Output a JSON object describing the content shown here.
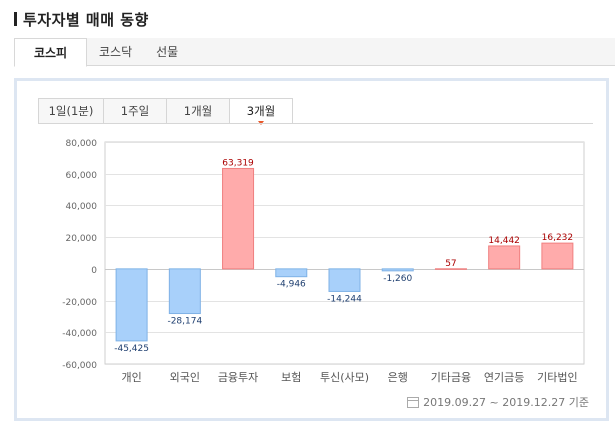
{
  "header": {
    "title": "투자자별 매매 동향"
  },
  "market_tabs": [
    {
      "label": "코스피",
      "active": true
    },
    {
      "label": "코스닥",
      "active": false
    },
    {
      "label": "선물",
      "active": false
    }
  ],
  "period_tabs": [
    {
      "label": "1일(1분)",
      "active": false
    },
    {
      "label": "1주일",
      "active": false
    },
    {
      "label": "1개월",
      "active": false
    },
    {
      "label": "3개월",
      "active": true
    }
  ],
  "footer": {
    "date_range": "2019.09.27 ~ 2019.12.27 기준"
  },
  "colors": {
    "positive_fill": "#ffabab",
    "positive_stroke": "#f08080",
    "positive_label": "#aa0000",
    "negative_fill": "#a8d0fa",
    "negative_stroke": "#7fb2e6",
    "negative_label": "#1f3f70",
    "grid": "#e3e3e3",
    "panel_border": "#dde6f2",
    "selected_marker": "#e8582a"
  },
  "chart_data": {
    "type": "bar",
    "categories": [
      "개인",
      "외국인",
      "금융투자",
      "보험",
      "투신(사모)",
      "은행",
      "기타금융",
      "연기금등",
      "기타법인"
    ],
    "values": [
      -45425,
      -28174,
      63319,
      -4946,
      -14244,
      -1260,
      57,
      14442,
      16232
    ],
    "value_labels": [
      "-45,425",
      "-28,174",
      "63,319",
      "-4,946",
      "-14,244",
      "-1,260",
      "57",
      "14,442",
      "16,232"
    ],
    "yticks": [
      80000,
      60000,
      40000,
      20000,
      0,
      -20000,
      -40000,
      -60000
    ],
    "ytick_labels": [
      "80,000",
      "60,000",
      "40,000",
      "20,000",
      "0",
      "-20,000",
      "-40,000",
      "-60,000"
    ],
    "ylim": [
      -60000,
      80000
    ],
    "grid": true
  }
}
